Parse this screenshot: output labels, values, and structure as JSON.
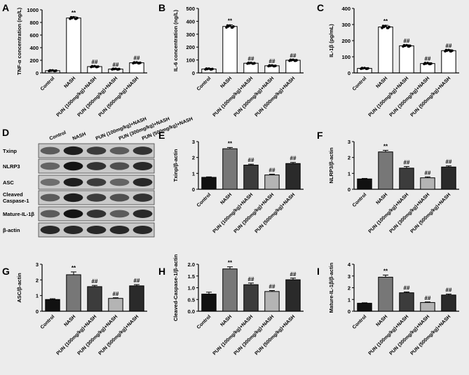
{
  "figure": {
    "background": "#ececec",
    "blot": {
      "panel_letter": "D",
      "lane_labels": [
        "Control",
        "NASH",
        "PUN (100mg/kg)+NASH",
        "PUN (300mg/kg)+NASH",
        "PUN (500mg/kg)+NASH"
      ],
      "rows": [
        "Txinp",
        "NLRP3",
        "ASC",
        "Cleaved Caspase-1",
        "Mature-IL-1β",
        "β-actin"
      ]
    }
  },
  "chart_data": [
    {
      "id": "A",
      "panel_letter": "A",
      "type": "bar",
      "categories": [
        "Control",
        "NASH",
        "PUN (100mg/kg)+NASH",
        "PUN (300mg/kg)+NASH",
        "PUN (500mg/kg)+NASH"
      ],
      "values": [
        35,
        870,
        100,
        60,
        160
      ],
      "errors": [
        8,
        20,
        10,
        8,
        10
      ],
      "annotations": [
        "",
        "**",
        "##",
        "##",
        "##"
      ],
      "bar_colors": [
        "#ffffff",
        "#ffffff",
        "#ffffff",
        "#ffffff",
        "#ffffff"
      ],
      "show_points": true,
      "ylabel": "TNF-α concentration (ng/L)",
      "ylim": [
        0,
        1000
      ],
      "yticks": [
        0,
        200,
        400,
        600,
        800,
        1000
      ]
    },
    {
      "id": "B",
      "panel_letter": "B",
      "type": "bar",
      "categories": [
        "Control",
        "NASH",
        "PUN (100mg/kg)+NASH",
        "PUN (300mg/kg)+NASH",
        "PUN (500mg/kg)+NASH"
      ],
      "values": [
        30,
        360,
        75,
        55,
        98
      ],
      "errors": [
        5,
        12,
        5,
        5,
        6
      ],
      "annotations": [
        "",
        "**",
        "##",
        "##",
        "##"
      ],
      "bar_colors": [
        "#ffffff",
        "#ffffff",
        "#ffffff",
        "#ffffff",
        "#ffffff"
      ],
      "show_points": true,
      "ylabel": "IL-6 concentration (ng/L)",
      "ylim": [
        0,
        500
      ],
      "yticks": [
        0,
        100,
        200,
        300,
        400,
        500
      ]
    },
    {
      "id": "C",
      "panel_letter": "C",
      "type": "bar",
      "categories": [
        "Control",
        "NASH",
        "PUN (100mg/kg)+NASH",
        "PUN (300mg/kg)+NASH",
        "PUN (500mg/kg)+NASH"
      ],
      "values": [
        28,
        285,
        168,
        58,
        138
      ],
      "errors": [
        4,
        10,
        6,
        5,
        6
      ],
      "annotations": [
        "",
        "**",
        "##",
        "##",
        "##"
      ],
      "bar_colors": [
        "#ffffff",
        "#ffffff",
        "#ffffff",
        "#ffffff",
        "#ffffff"
      ],
      "show_points": true,
      "ylabel": "IL-1β (pg/mL)",
      "ylim": [
        0,
        400
      ],
      "yticks": [
        0,
        100,
        200,
        300,
        400
      ]
    },
    {
      "id": "E",
      "panel_letter": "E",
      "type": "bar",
      "categories": [
        "Control",
        "NASH",
        "PUN (100mg/kg)+NASH",
        "PUN (300mg/kg)+NASH",
        "PUN (500mg/kg)+NASH"
      ],
      "values": [
        0.75,
        2.55,
        1.52,
        0.9,
        1.62
      ],
      "errors": [
        0.03,
        0.08,
        0.06,
        0.05,
        0.07
      ],
      "annotations": [
        "",
        "**",
        "##",
        "##",
        "##"
      ],
      "bar_colors": [
        "#111111",
        "#777777",
        "#3c3c3c",
        "#b4b4b4",
        "#2a2a2a"
      ],
      "show_points": false,
      "ylabel": "Txinp/β-actin",
      "ylim": [
        0,
        3
      ],
      "yticks": [
        0,
        1,
        2,
        3
      ]
    },
    {
      "id": "F",
      "panel_letter": "F",
      "type": "bar",
      "categories": [
        "Control",
        "NASH",
        "PUN (100mg/kg)+NASH",
        "PUN (300mg/kg)+NASH",
        "PUN (500mg/kg)+NASH"
      ],
      "values": [
        0.65,
        2.35,
        1.33,
        0.72,
        1.4
      ],
      "errors": [
        0.03,
        0.1,
        0.1,
        0.06,
        0.07
      ],
      "annotations": [
        "",
        "**",
        "##",
        "##",
        "##"
      ],
      "bar_colors": [
        "#111111",
        "#777777",
        "#3c3c3c",
        "#b4b4b4",
        "#2a2a2a"
      ],
      "show_points": false,
      "ylabel": "NLRP3/β-actin",
      "ylim": [
        0,
        3
      ],
      "yticks": [
        0,
        1,
        2,
        3
      ]
    },
    {
      "id": "G",
      "panel_letter": "G",
      "type": "bar",
      "categories": [
        "Control",
        "NASH",
        "PUN (100mg/kg)+NASH",
        "PUN (300mg/kg)+NASH",
        "PUN (500mg/kg)+NASH"
      ],
      "values": [
        0.75,
        2.33,
        1.57,
        0.82,
        1.62
      ],
      "errors": [
        0.05,
        0.18,
        0.08,
        0.04,
        0.08
      ],
      "annotations": [
        "",
        "**",
        "##",
        "##",
        "##"
      ],
      "bar_colors": [
        "#111111",
        "#777777",
        "#3c3c3c",
        "#b4b4b4",
        "#2a2a2a"
      ],
      "show_points": false,
      "ylabel": "ASC/β-actin",
      "ylim": [
        0,
        3
      ],
      "yticks": [
        0,
        1,
        2,
        3
      ]
    },
    {
      "id": "H",
      "panel_letter": "H",
      "type": "bar",
      "categories": [
        "Control",
        "NASH",
        "PUN (100mg/kg)+NASH",
        "PUN (300mg/kg)+NASH",
        "PUN (500mg/kg)+NASH"
      ],
      "values": [
        0.73,
        1.8,
        1.13,
        0.84,
        1.34
      ],
      "errors": [
        0.08,
        0.09,
        0.07,
        0.04,
        0.07
      ],
      "annotations": [
        "",
        "**",
        "##",
        "##",
        "##"
      ],
      "bar_colors": [
        "#111111",
        "#777777",
        "#3c3c3c",
        "#b4b4b4",
        "#2a2a2a"
      ],
      "show_points": false,
      "ylabel": "Cleaved-Caspase-1/β-actin",
      "ylim": [
        0,
        2
      ],
      "yticks": [
        0,
        0.5,
        1,
        1.5,
        2
      ],
      "ytick_labels": [
        "0.0",
        "0.5",
        "1.0",
        "1.5",
        "2.0"
      ]
    },
    {
      "id": "I",
      "panel_letter": "I",
      "type": "bar",
      "categories": [
        "Control",
        "NASH",
        "PUN (100mg/kg)+NASH",
        "PUN (300mg/kg)+NASH",
        "PUN (500mg/kg)+NASH"
      ],
      "values": [
        0.68,
        2.9,
        1.57,
        0.74,
        1.38
      ],
      "errors": [
        0.04,
        0.18,
        0.07,
        0.05,
        0.08
      ],
      "annotations": [
        "",
        "**",
        "##",
        "##",
        "##"
      ],
      "bar_colors": [
        "#111111",
        "#777777",
        "#3c3c3c",
        "#b4b4b4",
        "#2a2a2a"
      ],
      "show_points": false,
      "ylabel": "Mature-IL-1β/β-actin",
      "ylim": [
        0,
        4
      ],
      "yticks": [
        0,
        1,
        2,
        3,
        4
      ]
    }
  ]
}
